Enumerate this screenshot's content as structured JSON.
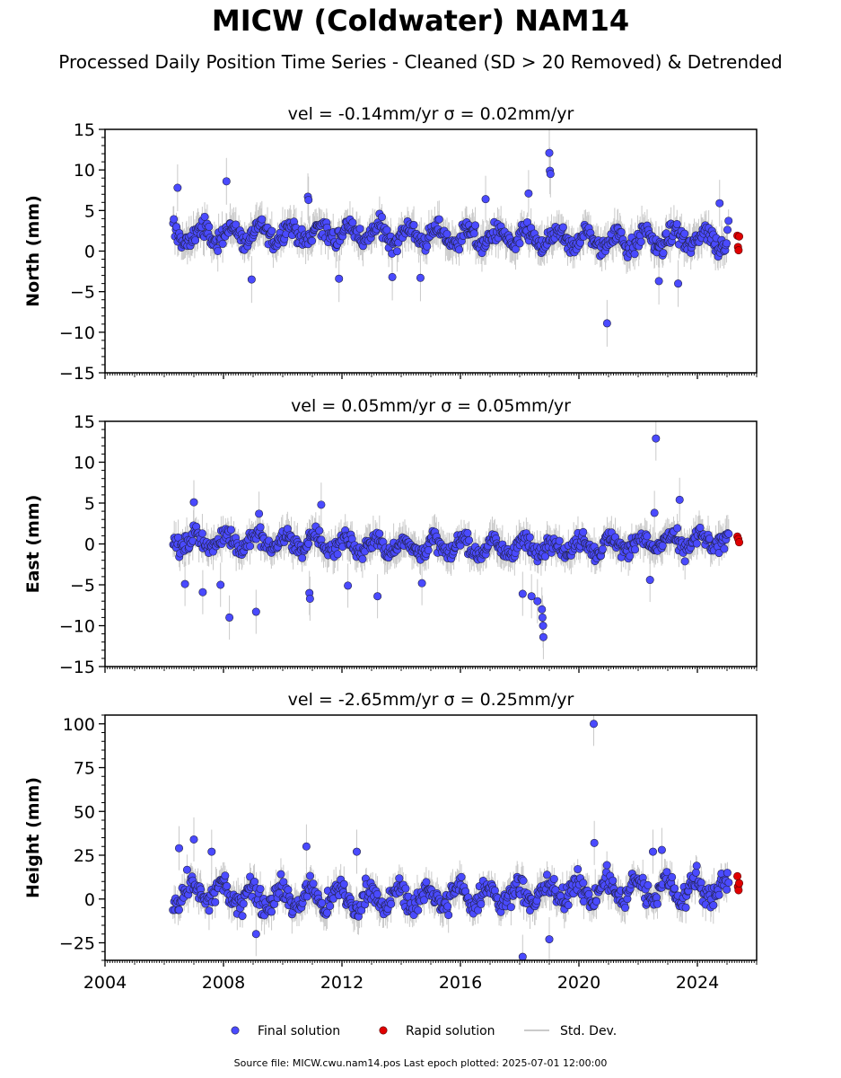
{
  "title": "MICW (Coldwater) NAM14",
  "subtitle": "Processed Daily Position Time Series - Cleaned (SD > 20 Removed) & Detrended",
  "footer": "Source file: MICW.cwu.nam14.pos  Last epoch plotted: 2025-07-01 12:00:00",
  "colors": {
    "final": "#4a4aff",
    "rapid": "#e00000",
    "stddev": "#b8b8b8",
    "edge": "#222244"
  },
  "legend": {
    "final": "Final solution",
    "rapid": "Rapid solution",
    "stddev": "Std. Dev."
  },
  "chart_data": {
    "type": "scatter",
    "xlim": [
      2004.0,
      2026.0
    ],
    "xticks": [
      2004,
      2008,
      2012,
      2016,
      2020,
      2024
    ],
    "xtick_labels": [
      "2004",
      "2008",
      "2012",
      "2016",
      "2020",
      "2024"
    ],
    "legend_position": "bottom-center",
    "final_range": [
      2006.3,
      2025.05
    ],
    "rapid_range": [
      2025.3,
      2025.45
    ],
    "panels": [
      {
        "key": "north",
        "subtitle": "vel = -0.14mm/yr   σ = 0.02mm/yr",
        "ylabel": "North (mm)",
        "ylim": [
          -15,
          15
        ],
        "yticks": [
          -15,
          -10,
          -5,
          0,
          5,
          10,
          15
        ],
        "ytick_labels": [
          "−15",
          "−10",
          "−5",
          "0",
          "5",
          "10",
          "15"
        ],
        "baseline": 1.8,
        "amplitude": 1.0,
        "scatter": 1.1,
        "errbar": 1.6,
        "outliers": [
          [
            2006.45,
            7.8
          ],
          [
            2008.1,
            8.6
          ],
          [
            2008.95,
            -3.5
          ],
          [
            2010.85,
            6.7
          ],
          [
            2010.87,
            6.3
          ],
          [
            2011.9,
            -3.4
          ],
          [
            2013.7,
            -3.2
          ],
          [
            2014.65,
            -3.3
          ],
          [
            2016.85,
            6.4
          ],
          [
            2018.3,
            7.1
          ],
          [
            2019.0,
            12.1
          ],
          [
            2019.02,
            9.9
          ],
          [
            2019.04,
            9.5
          ],
          [
            2020.95,
            -8.9
          ],
          [
            2022.7,
            -3.7
          ],
          [
            2023.35,
            -4.0
          ],
          [
            2024.75,
            5.9
          ]
        ],
        "rapid": [
          [
            2025.35,
            1.9
          ],
          [
            2025.37,
            0.5
          ],
          [
            2025.39,
            0.1
          ],
          [
            2025.41,
            1.8
          ]
        ]
      },
      {
        "key": "east",
        "subtitle": "vel = 0.05mm/yr   σ = 0.05mm/yr",
        "ylabel": "East (mm)",
        "ylim": [
          -15,
          15
        ],
        "yticks": [
          -15,
          -10,
          -5,
          0,
          5,
          10,
          15
        ],
        "ytick_labels": [
          "−15",
          "−10",
          "−5",
          "0",
          "5",
          "10",
          "15"
        ],
        "baseline": 0.0,
        "amplitude": 0.9,
        "scatter": 1.0,
        "errbar": 1.5,
        "outliers": [
          [
            2006.7,
            -4.9
          ],
          [
            2007.0,
            5.1
          ],
          [
            2007.3,
            -5.9
          ],
          [
            2007.9,
            -5.0
          ],
          [
            2008.2,
            -9.0
          ],
          [
            2009.1,
            -8.3
          ],
          [
            2009.2,
            3.7
          ],
          [
            2010.9,
            -6.0
          ],
          [
            2010.92,
            -6.7
          ],
          [
            2011.3,
            4.8
          ],
          [
            2012.2,
            -5.1
          ],
          [
            2013.2,
            -6.4
          ],
          [
            2014.7,
            -4.8
          ],
          [
            2018.1,
            -6.1
          ],
          [
            2018.4,
            -6.4
          ],
          [
            2018.6,
            -7.0
          ],
          [
            2018.75,
            -8.0
          ],
          [
            2018.77,
            -9.0
          ],
          [
            2018.79,
            -10.0
          ],
          [
            2018.8,
            -11.4
          ],
          [
            2022.6,
            12.9
          ],
          [
            2022.4,
            -4.4
          ],
          [
            2023.4,
            5.4
          ],
          [
            2022.55,
            3.8
          ]
        ],
        "rapid": [
          [
            2025.35,
            0.9
          ],
          [
            2025.38,
            0.6
          ],
          [
            2025.41,
            0.2
          ]
        ]
      },
      {
        "key": "height",
        "subtitle": "vel = -2.65mm/yr   σ = 0.25mm/yr",
        "ylabel": "Height (mm)",
        "ylim": [
          -35,
          105
        ],
        "yticks": [
          -25,
          0,
          25,
          50,
          75,
          100
        ],
        "ytick_labels": [
          "−25",
          "0",
          "25",
          "50",
          "75",
          "100"
        ],
        "baseline": 3.0,
        "amplitude": 6.0,
        "scatter": 6.0,
        "errbar": 7.0,
        "outliers": [
          [
            2006.5,
            29.0
          ],
          [
            2007.0,
            34.0
          ],
          [
            2007.6,
            27.0
          ],
          [
            2009.1,
            -20.0
          ],
          [
            2010.8,
            30.0
          ],
          [
            2012.5,
            27.0
          ],
          [
            2018.1,
            -33.0
          ],
          [
            2019.0,
            -23.0
          ],
          [
            2020.5,
            100.0
          ],
          [
            2020.52,
            32.0
          ],
          [
            2022.5,
            27.0
          ],
          [
            2022.8,
            28.0
          ]
        ],
        "rapid": [
          [
            2025.35,
            13.0
          ],
          [
            2025.37,
            7.0
          ],
          [
            2025.39,
            5.0
          ],
          [
            2025.41,
            9.0
          ]
        ]
      }
    ]
  }
}
